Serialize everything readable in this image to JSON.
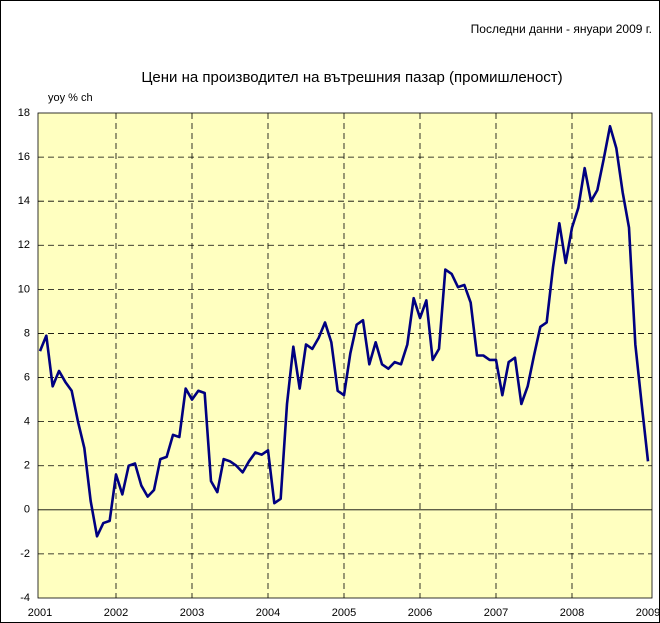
{
  "chart_data": {
    "type": "line",
    "title": "Цени на производител на вътрешния пазар (промишленост)",
    "note": "Последни данни - януари 2009 г.",
    "y_label": "yoy % ch",
    "categories": [
      "2001",
      null,
      null,
      null,
      null,
      null,
      null,
      null,
      null,
      null,
      null,
      null,
      "2002",
      null,
      null,
      null,
      null,
      null,
      null,
      null,
      null,
      null,
      null,
      null,
      "2003",
      null,
      null,
      null,
      null,
      null,
      null,
      null,
      null,
      null,
      null,
      null,
      "2004",
      null,
      null,
      null,
      null,
      null,
      null,
      null,
      null,
      null,
      null,
      null,
      "2005",
      null,
      null,
      null,
      null,
      null,
      null,
      null,
      null,
      null,
      null,
      null,
      "2006",
      null,
      null,
      null,
      null,
      null,
      null,
      null,
      null,
      null,
      null,
      null,
      "2007",
      null,
      null,
      null,
      null,
      null,
      null,
      null,
      null,
      null,
      null,
      null,
      "2008",
      null,
      null,
      null,
      null,
      null,
      null,
      null,
      null,
      null,
      null,
      null,
      "2009"
    ],
    "series": [
      {
        "color": "#000080",
        "values": [
          7.2,
          7.9,
          5.6,
          6.3,
          5.8,
          5.4,
          4.0,
          2.8,
          0.4,
          -1.2,
          -0.6,
          -0.5,
          1.6,
          0.7,
          2.0,
          2.1,
          1.1,
          0.6,
          0.9,
          2.3,
          2.4,
          3.4,
          3.3,
          5.5,
          5.0,
          5.4,
          5.3,
          1.3,
          0.8,
          2.3,
          2.2,
          2.0,
          1.7,
          2.2,
          2.6,
          2.5,
          2.7,
          0.3,
          0.5,
          4.8,
          7.4,
          5.5,
          7.5,
          7.3,
          7.8,
          8.5,
          7.6,
          5.4,
          5.2,
          7.1,
          8.4,
          8.6,
          6.6,
          7.6,
          6.6,
          6.4,
          6.7,
          6.6,
          7.5,
          9.6,
          8.7,
          9.5,
          6.8,
          7.3,
          10.9,
          10.7,
          10.1,
          10.2,
          9.4,
          7.0,
          7.0,
          6.8,
          6.8,
          5.2,
          6.7,
          6.9,
          4.8,
          5.6,
          7.0,
          8.3,
          8.5,
          11.0,
          13.0,
          11.2,
          12.8,
          13.7,
          15.5,
          14.0,
          14.5,
          15.9,
          17.4,
          16.4,
          14.4,
          12.8,
          7.5,
          4.8,
          2.2
        ]
      }
    ],
    "ylim": [
      -4,
      18
    ],
    "yticks": [
      -4,
      -2,
      0,
      2,
      4,
      6,
      8,
      10,
      12,
      14,
      16,
      18
    ],
    "grid": true
  }
}
